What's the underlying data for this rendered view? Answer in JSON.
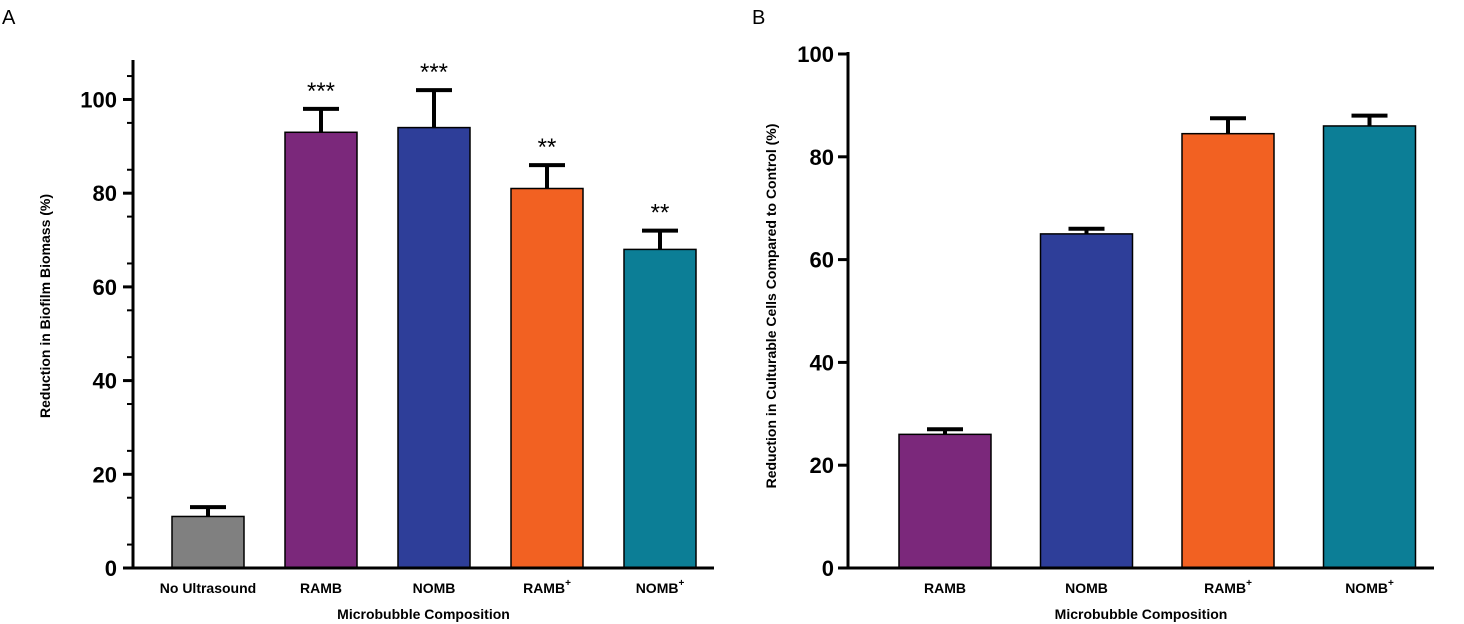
{
  "chart_data": [
    {
      "type": "bar",
      "panel": "A",
      "categories": [
        {
          "name": "No Ultrasound",
          "sup": ""
        },
        {
          "name": "RAMB",
          "sup": ""
        },
        {
          "name": "NOMB",
          "sup": ""
        },
        {
          "name": "RAMB",
          "sup": "+"
        },
        {
          "name": "NOMB",
          "sup": "+"
        }
      ],
      "values": [
        11,
        93,
        94,
        81,
        68
      ],
      "errors": [
        2,
        5,
        8,
        5,
        4
      ],
      "significance": [
        "",
        "***",
        "***",
        "**",
        "**"
      ],
      "colors": [
        "#808080",
        "#7b287b",
        "#2e3e99",
        "#f26122",
        "#0c7e96"
      ],
      "xlabel": "Microbubble Composition",
      "ylabel": "Reduction in Biofilm Biomass (%)",
      "ylim": [
        0,
        108
      ],
      "yticks": [
        0,
        20,
        40,
        60,
        80,
        100
      ],
      "minor_ticks": true,
      "grid": false
    },
    {
      "type": "bar",
      "panel": "B",
      "categories": [
        {
          "name": "RAMB",
          "sup": ""
        },
        {
          "name": "NOMB",
          "sup": ""
        },
        {
          "name": "RAMB",
          "sup": "+"
        },
        {
          "name": "NOMB",
          "sup": "+"
        }
      ],
      "values": [
        26,
        65,
        84.5,
        86
      ],
      "errors": [
        1,
        1,
        3,
        2
      ],
      "significance": [
        "",
        "",
        "",
        ""
      ],
      "colors": [
        "#7b287b",
        "#2e3e99",
        "#f26122",
        "#0c7e96"
      ],
      "xlabel": "Microbubble Composition",
      "ylabel": "Reduction in Culturable Cells Compared to Control (%)",
      "ylim": [
        0,
        100
      ],
      "yticks": [
        0,
        20,
        40,
        60,
        80,
        100
      ],
      "minor_ticks": false,
      "grid": false
    }
  ]
}
